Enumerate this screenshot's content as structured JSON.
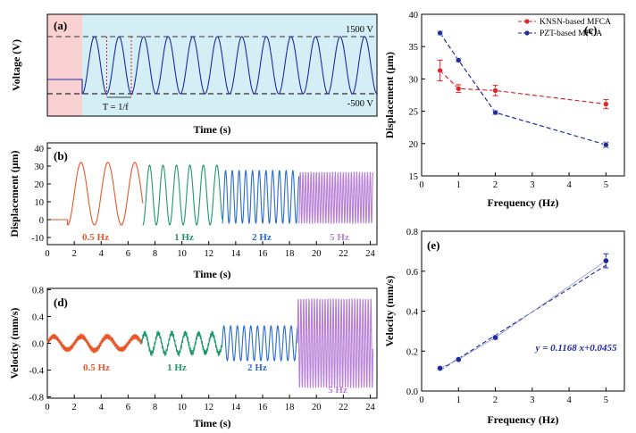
{
  "colors": {
    "orange": "#e8562a",
    "green": "#1e9a6a",
    "blue_mid": "#2a6bd0",
    "purple": "#b77fd6",
    "navy": "#1f2a9c",
    "red": "#e0242a",
    "pink": "#f9d1d3",
    "cyan": "#d4eef6"
  },
  "chart_data": [
    {
      "id": "a",
      "panel": "(a)",
      "type": "line",
      "xlabel": "Time (s)",
      "ylabel": "Voltage (V)",
      "annotations": {
        "high": "1500 V",
        "low": "-500 V",
        "period": "T = 1/f"
      },
      "series": [
        {
          "waveform": "sine",
          "max": 1500,
          "min": -500,
          "cycles": 12
        }
      ]
    },
    {
      "id": "b",
      "panel": "(b)",
      "type": "line",
      "xlabel": "Time (s)",
      "ylabel": "Displacement (μm)",
      "xlim": [
        0,
        24.5
      ],
      "ylim": [
        -14,
        43
      ],
      "xticks": [
        0,
        2,
        4,
        6,
        8,
        10,
        12,
        14,
        16,
        18,
        20,
        22,
        24
      ],
      "yticks": [
        -10,
        0,
        10,
        20,
        30,
        40
      ],
      "series": [
        {
          "name": "0.5 Hz",
          "color": "orange",
          "t0": 1.5,
          "t1": 7.1,
          "freq": 0.5,
          "amp": 32,
          "base": -3,
          "lead": [
            0,
            1.5
          ]
        },
        {
          "name": "1 Hz",
          "color": "green",
          "t0": 7.1,
          "t1": 13.0,
          "freq": 1,
          "amp": 30.5,
          "base": -3
        },
        {
          "name": "2 Hz",
          "color": "blue_mid",
          "t0": 13.0,
          "t1": 18.7,
          "freq": 2,
          "amp": 27.5,
          "base": -2
        },
        {
          "name": "5 Hz",
          "color": "purple",
          "t0": 18.7,
          "t1": 24.2,
          "freq": 5,
          "amp": 26.5,
          "base": -2
        }
      ]
    },
    {
      "id": "d",
      "panel": "(d)",
      "type": "line",
      "xlabel": "Time (s)",
      "ylabel": "Velocity (mm/s)",
      "xlim": [
        0,
        24.5
      ],
      "ylim": [
        -0.82,
        0.82
      ],
      "xticks": [
        0,
        2,
        4,
        6,
        8,
        10,
        12,
        14,
        16,
        18,
        20,
        22,
        24
      ],
      "yticks": [
        -0.8,
        -0.4,
        0.0,
        0.4,
        0.8
      ],
      "series": [
        {
          "name": "0.5 Hz",
          "color": "orange",
          "t0": 0,
          "t1": 7.0,
          "freq": 0.5,
          "amp": 0.1
        },
        {
          "name": "1 Hz",
          "color": "green",
          "t0": 7.0,
          "t1": 13.0,
          "freq": 1,
          "amp": 0.15
        },
        {
          "name": "2 Hz",
          "color": "blue_mid",
          "t0": 13.0,
          "t1": 18.6,
          "freq": 2,
          "amp": 0.26
        },
        {
          "name": "5 Hz",
          "color": "purple",
          "t0": 18.6,
          "t1": 24.2,
          "freq": 5,
          "amp": 0.66
        }
      ]
    },
    {
      "id": "c",
      "panel": "(c)",
      "type": "line",
      "xlabel": "Frequency (Hz)",
      "ylabel": "Displacement (μm)",
      "xlim": [
        0,
        5.5
      ],
      "ylim": [
        15,
        40
      ],
      "xticks": [
        0,
        1,
        2,
        3,
        4,
        5
      ],
      "yticks": [
        15,
        20,
        25,
        30,
        35,
        40
      ],
      "legend": "top-right",
      "series": [
        {
          "name": "KNSN-based MFCA",
          "color": "red",
          "x": [
            0.5,
            1,
            2,
            5
          ],
          "y": [
            31.3,
            28.5,
            28.2,
            26.1
          ],
          "err": [
            1.6,
            0.6,
            0.8,
            0.7
          ]
        },
        {
          "name": "PZT-based MFCA",
          "color": "navy",
          "x": [
            0.5,
            1,
            2,
            5
          ],
          "y": [
            37.1,
            32.9,
            24.8,
            19.8
          ],
          "err": [
            0.3,
            0.3,
            0.3,
            0.4
          ]
        }
      ]
    },
    {
      "id": "e",
      "panel": "(e)",
      "type": "scatter",
      "xlabel": "Frequency (Hz)",
      "ylabel": "Velocity (mm/s)",
      "xlim": [
        0,
        5.5
      ],
      "ylim": [
        0,
        0.8
      ],
      "xticks": [
        0,
        1,
        2,
        3,
        4,
        5
      ],
      "yticks": [
        0.0,
        0.2,
        0.4,
        0.6,
        0.8
      ],
      "fit_label": "y = 0.1168 x+0.0455",
      "fit": {
        "slope": 0.1168,
        "intercept": 0.0455
      },
      "series": [
        {
          "color": "navy",
          "x": [
            0.5,
            1,
            2,
            5
          ],
          "y": [
            0.114,
            0.158,
            0.268,
            0.652
          ],
          "err": [
            0.008,
            0.008,
            0.01,
            0.035
          ]
        }
      ]
    }
  ]
}
